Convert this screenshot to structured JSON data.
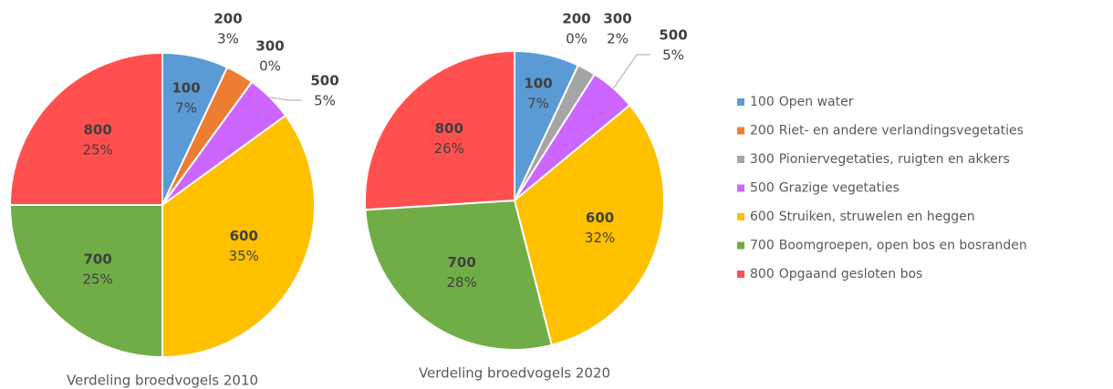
{
  "chart_data": [
    {
      "type": "pie",
      "title": "Verdeling broedvogels 2010",
      "categories": [
        "100",
        "200",
        "300",
        "500",
        "600",
        "700",
        "800"
      ],
      "values": [
        7,
        3,
        0,
        5,
        35,
        25,
        25
      ],
      "value_labels": [
        "7%",
        "3%",
        "0%",
        "5%",
        "35%",
        "25%",
        "25%"
      ],
      "colors": [
        "#5b9bd5",
        "#ed7d31",
        "#a5a5a5",
        "#cc66ff",
        "#ffc000",
        "#70ad47",
        "#ff5050"
      ]
    },
    {
      "type": "pie",
      "title": "Verdeling broedvogels 2020",
      "categories": [
        "100",
        "200",
        "300",
        "500",
        "600",
        "700",
        "800"
      ],
      "values": [
        7,
        0,
        2,
        5,
        32,
        28,
        26
      ],
      "value_labels": [
        "7%",
        "0%",
        "2%",
        "5%",
        "32%",
        "28%",
        "26%"
      ],
      "colors": [
        "#5b9bd5",
        "#ed7d31",
        "#a5a5a5",
        "#cc66ff",
        "#ffc000",
        "#70ad47",
        "#ff5050"
      ]
    }
  ],
  "legend": {
    "labels": [
      "Open water",
      "Riet- en andere verlandingsvegetaties",
      "Pioniervegetaties, ruigten en akkers",
      "Grazige vegetaties",
      "Struiken, struwelen en heggen",
      "Boomgroepen, open bos en bosranden",
      "Opgaand gesloten bos"
    ]
  }
}
